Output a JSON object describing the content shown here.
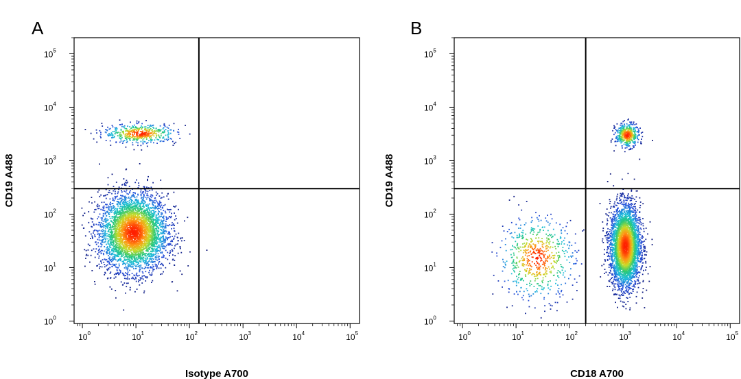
{
  "chart_data": [
    {
      "type": "scatter",
      "panel_label": "A",
      "xlabel": "Isotype A700",
      "ylabel": "CD19 A488",
      "x_scale": "log",
      "y_scale": "log",
      "xlim": [
        0.7,
        150000
      ],
      "ylim": [
        0.9,
        200000
      ],
      "x_ticks": [
        {
          "base": "10",
          "exp": "0"
        },
        {
          "base": "10",
          "exp": "1"
        },
        {
          "base": "10",
          "exp": "2"
        },
        {
          "base": "10",
          "exp": "3"
        },
        {
          "base": "10",
          "exp": "4"
        },
        {
          "base": "10",
          "exp": "5"
        }
      ],
      "y_ticks": [
        {
          "base": "10",
          "exp": "0"
        },
        {
          "base": "10",
          "exp": "1"
        },
        {
          "base": "10",
          "exp": "2"
        },
        {
          "base": "10",
          "exp": "3"
        },
        {
          "base": "10",
          "exp": "4"
        },
        {
          "base": "10",
          "exp": "5"
        }
      ],
      "quadrant_gate": {
        "x": 150,
        "y": 300
      },
      "populations": [
        {
          "center": [
            9,
            45
          ],
          "spread": [
            0.32,
            0.36
          ],
          "count": 4200
        },
        {
          "center": [
            12,
            3200
          ],
          "spread": [
            0.34,
            0.09
          ],
          "count": 500
        }
      ],
      "grid": false,
      "legend": "none"
    },
    {
      "type": "scatter",
      "panel_label": "B",
      "xlabel": "CD18 A700",
      "ylabel": "CD19 A488",
      "x_scale": "log",
      "y_scale": "log",
      "xlim": [
        0.7,
        150000
      ],
      "ylim": [
        0.9,
        200000
      ],
      "x_ticks": [
        {
          "base": "10",
          "exp": "0"
        },
        {
          "base": "10",
          "exp": "1"
        },
        {
          "base": "10",
          "exp": "2"
        },
        {
          "base": "10",
          "exp": "3"
        },
        {
          "base": "10",
          "exp": "4"
        },
        {
          "base": "10",
          "exp": "5"
        }
      ],
      "y_ticks": [
        {
          "base": "10",
          "exp": "0"
        },
        {
          "base": "10",
          "exp": "1"
        },
        {
          "base": "10",
          "exp": "2"
        },
        {
          "base": "10",
          "exp": "3"
        },
        {
          "base": "10",
          "exp": "4"
        },
        {
          "base": "10",
          "exp": "5"
        }
      ],
      "quadrant_gate": {
        "x": 200,
        "y": 300
      },
      "populations": [
        {
          "center": [
            1100,
            25
          ],
          "spread": [
            0.14,
            0.38
          ],
          "count": 3800
        },
        {
          "center": [
            1200,
            3000
          ],
          "spread": [
            0.11,
            0.11
          ],
          "count": 450
        },
        {
          "center": [
            25,
            15
          ],
          "spread": [
            0.35,
            0.38
          ],
          "count": 650
        }
      ],
      "grid": false,
      "legend": "none"
    }
  ],
  "colors": {
    "axis": "#000000",
    "density_low": "#0a1a8a",
    "density_mid": "#1ec8a0",
    "density_high": "#ff2a00"
  }
}
